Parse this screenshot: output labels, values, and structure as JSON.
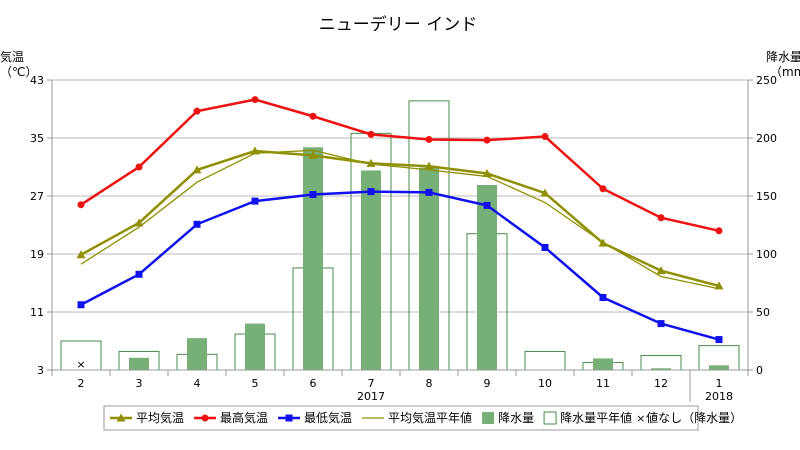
{
  "chart_data": {
    "type": "bar+line",
    "title": "ニューデリー インド",
    "left_axis": {
      "label_line1": "気温",
      "label_line2": "（℃）",
      "min": 3,
      "max": 43,
      "ticks": [
        3,
        11,
        19,
        27,
        35,
        43
      ]
    },
    "right_axis": {
      "label_line1": "降水量",
      "label_line2": "（mm）",
      "min": 0,
      "max": 250,
      "ticks": [
        0,
        50,
        100,
        150,
        200,
        250
      ]
    },
    "months": [
      "2",
      "3",
      "4",
      "5",
      "6",
      "7",
      "8",
      "9",
      "10",
      "11",
      "12",
      "1"
    ],
    "years": [
      {
        "label": "2017",
        "at_index": 5
      },
      {
        "label": "2018",
        "at_index": 11
      }
    ],
    "series": {
      "avg_temp": {
        "name": "平均気温",
        "color": "#8f8f00",
        "values": [
          18.9,
          23.3,
          30.6,
          33.2,
          32.6,
          31.5,
          31.1,
          30.1,
          27.4,
          20.5,
          16.7,
          14.6
        ]
      },
      "max_temp": {
        "name": "最高気温",
        "color": "#ee1111",
        "values": [
          25.8,
          31.0,
          38.7,
          40.3,
          38.0,
          35.5,
          34.8,
          34.7,
          35.2,
          28.0,
          24.0,
          22.2
        ]
      },
      "min_temp": {
        "name": "最低気温",
        "color": "#1111ee",
        "values": [
          12.0,
          16.2,
          23.1,
          26.3,
          27.2,
          27.6,
          27.5,
          25.7,
          19.9,
          13.0,
          9.4,
          7.2
        ]
      },
      "avg_temp_normal": {
        "name": "平均気温平年値",
        "color": "#8f8f00",
        "values": [
          17.6,
          22.7,
          28.9,
          32.9,
          33.3,
          31.4,
          30.6,
          29.7,
          26.1,
          20.6,
          15.9,
          14.2
        ]
      },
      "precip": {
        "name": "降水量",
        "color": "#77b077",
        "values": [
          null,
          10.5,
          27.5,
          40.0,
          192.0,
          172.0,
          174.5,
          159.5,
          null,
          10.0,
          1.5,
          4.0
        ]
      },
      "precip_normal": {
        "name": "降水量平年値",
        "color": "#4a8a4a",
        "values": [
          25.0,
          16.0,
          13.5,
          31.0,
          88.0,
          204.0,
          232.0,
          117.5,
          16.0,
          6.5,
          12.5,
          21.0
        ]
      }
    },
    "no_value_marker": {
      "label": "値なし（降水量）",
      "month_indices": [
        0
      ]
    }
  }
}
